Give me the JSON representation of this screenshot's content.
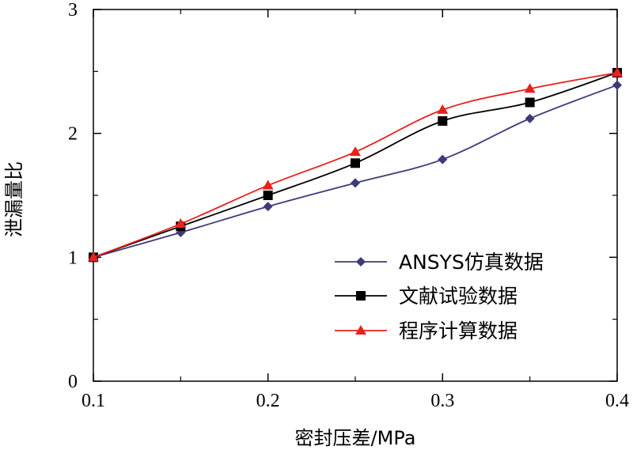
{
  "chart_data": {
    "type": "line",
    "title": "",
    "xlabel": "密封压差/MPa",
    "ylabel": "泄漏量比",
    "xlim": [
      0.1,
      0.4
    ],
    "ylim": [
      0,
      3
    ],
    "x_ticks": [
      0.1,
      0.2,
      0.3,
      0.4
    ],
    "x_tick_labels": [
      "0.1",
      "0.2",
      "0.3",
      "0.4"
    ],
    "x_minor_ticks": [
      0.15,
      0.25,
      0.35
    ],
    "y_ticks": [
      0,
      1,
      2,
      3
    ],
    "y_tick_labels": [
      "0",
      "1",
      "2",
      "3"
    ],
    "y_minor_ticks": [
      0.5,
      1.5,
      2.5
    ],
    "grid": false,
    "legend_position": "bottom-right",
    "x": [
      0.1,
      0.15,
      0.2,
      0.25,
      0.3,
      0.35,
      0.4
    ],
    "series": [
      {
        "name": "ANSYS仿真数据",
        "marker": "diamond",
        "color": "#3d3a7a",
        "values": [
          1.0,
          1.2,
          1.41,
          1.6,
          1.79,
          2.12,
          2.39
        ]
      },
      {
        "name": "文献试验数据",
        "marker": "square",
        "color": "#000000",
        "values": [
          1.0,
          1.25,
          1.5,
          1.76,
          2.1,
          2.25,
          2.49
        ]
      },
      {
        "name": "程序计算数据",
        "marker": "triangle",
        "color": "#e8211d",
        "values": [
          1.0,
          1.27,
          1.58,
          1.85,
          2.19,
          2.36,
          2.49
        ]
      }
    ]
  }
}
